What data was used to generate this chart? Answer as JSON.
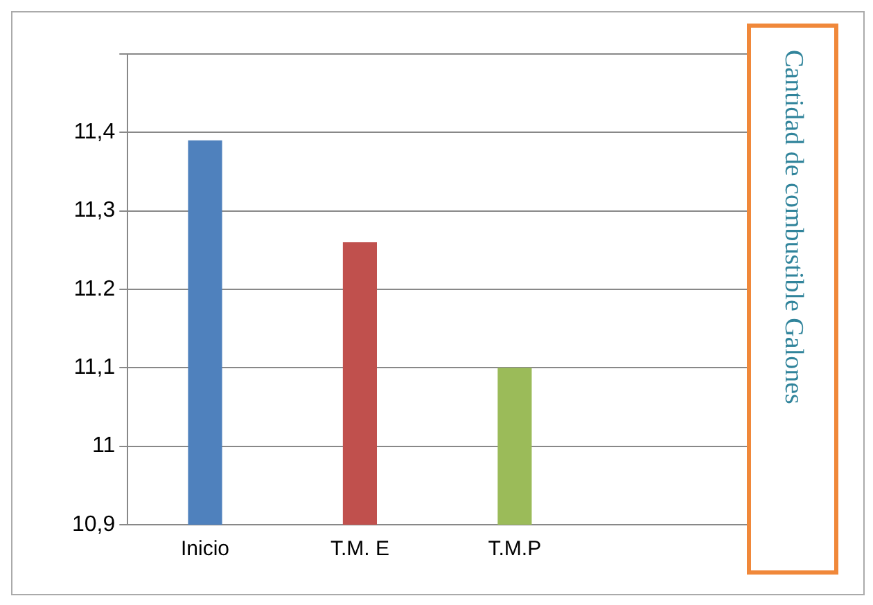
{
  "chart_data": {
    "type": "bar",
    "categories": [
      "Inicio",
      "T.M. E",
      "T.M.P",
      null
    ],
    "values": [
      11.39,
      11.26,
      11.1,
      null
    ],
    "colors": [
      "#4f81bd",
      "#c0504d",
      "#9bbb59",
      "#000000"
    ],
    "ylabel": "Cantidad de combustible Galones",
    "ylim": [
      10.9,
      11.5
    ],
    "yticks": [
      {
        "value": 10.9,
        "label": "10,9"
      },
      {
        "value": 11,
        "label": "11"
      },
      {
        "value": 11.1,
        "label": "11,1"
      },
      {
        "value": 11.2,
        "label": "11.2"
      },
      {
        "value": 11.3,
        "label": "11,3"
      },
      {
        "value": 11.4,
        "label": "11,4"
      },
      {
        "value": 11.5,
        "label": null
      }
    ],
    "grid": "y",
    "legend": false
  }
}
